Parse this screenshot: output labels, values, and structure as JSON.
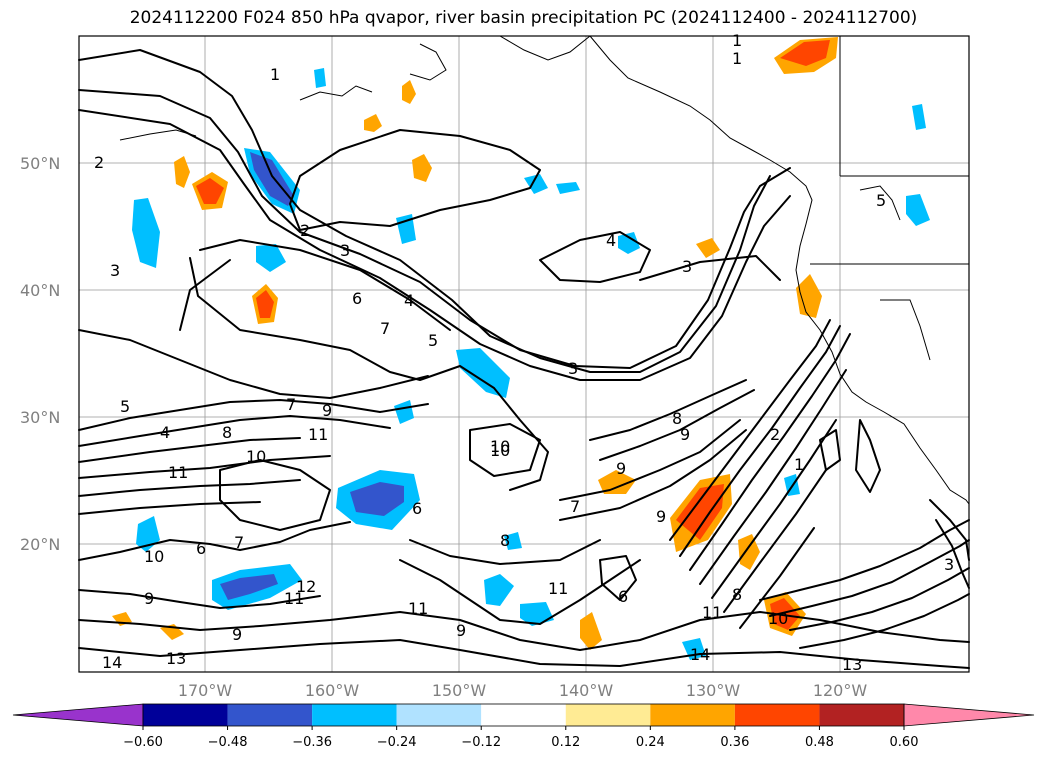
{
  "title": "2024112200 F024 850 hPa qvapor, river basin precipitation PC (2024112400 - 2024112700)",
  "lat_labels": [
    "50°N",
    "40°N",
    "30°N",
    "20°N"
  ],
  "lon_labels": [
    "170°W",
    "160°W",
    "150°W",
    "140°W",
    "130°W",
    "120°W"
  ],
  "contour_labels": [
    "2",
    "3",
    "4",
    "5",
    "6",
    "7",
    "8",
    "9",
    "10",
    "11",
    "12",
    "13",
    "14",
    "1"
  ],
  "colorbar": {
    "colors": [
      "#9933cc",
      "#000099",
      "#3355cc",
      "#00bfff",
      "#b0e2ff",
      "#ffffff",
      "#ffeb94",
      "#ffa500",
      "#ff4500",
      "#b22222",
      "#ff88aa"
    ],
    "ticks": [
      "−0.60",
      "−0.48",
      "−0.36",
      "−0.24",
      "−0.12",
      "0.12",
      "0.24",
      "0.36",
      "0.48",
      "0.60"
    ]
  },
  "legend_colors": {
    "contour": "#000000",
    "grid": "#999999",
    "axis_label": "#808080"
  }
}
